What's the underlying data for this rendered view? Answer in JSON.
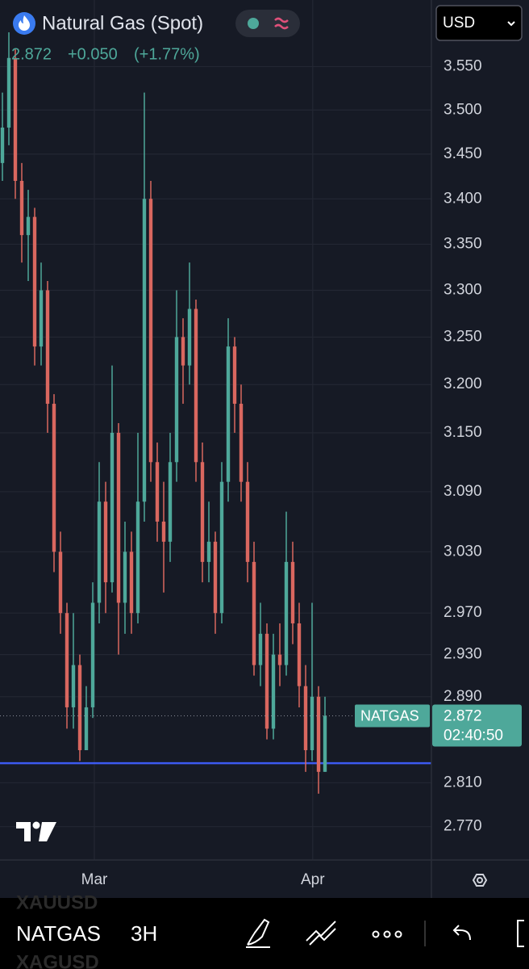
{
  "chart_data": {
    "type": "candlestick",
    "title": "Natural Gas (Spot)",
    "change": "+0.050",
    "change_percent": "(+1.77%)",
    "currency": "USD",
    "x": [
      0,
      1,
      2,
      3,
      4,
      5,
      6,
      7,
      8,
      9,
      10,
      11,
      12,
      13,
      14,
      15,
      16,
      17,
      18,
      19,
      20,
      21,
      22,
      23,
      24,
      25,
      26,
      27,
      28,
      29,
      30,
      31,
      32,
      33,
      34,
      35,
      36,
      37,
      38,
      39,
      40,
      41,
      42,
      43,
      44,
      45,
      46,
      47,
      48,
      49,
      50
    ],
    "open": [
      3.44,
      3.48,
      3.56,
      3.42,
      3.36,
      3.38,
      3.24,
      3.3,
      3.18,
      3.03,
      2.97,
      2.88,
      2.92,
      2.84,
      2.88,
      2.98,
      3.08,
      3.0,
      3.15,
      2.98,
      3.03,
      2.97,
      3.08,
      3.4,
      3.12,
      3.06,
      3.04,
      3.12,
      3.25,
      3.22,
      3.28,
      3.12,
      3.02,
      3.04,
      2.97,
      3.1,
      3.24,
      3.18,
      3.1,
      3.02,
      2.92,
      2.95,
      2.86,
      2.93,
      2.92,
      3.02,
      2.96,
      2.9,
      2.84,
      2.89,
      2.82
    ],
    "high": [
      3.52,
      3.59,
      3.57,
      3.44,
      3.41,
      3.39,
      3.33,
      3.31,
      3.19,
      3.05,
      2.98,
      2.97,
      2.93,
      2.9,
      3.0,
      3.12,
      3.1,
      3.22,
      3.16,
      3.06,
      3.05,
      3.15,
      3.52,
      3.42,
      3.14,
      3.1,
      3.15,
      3.3,
      3.27,
      3.33,
      3.29,
      3.14,
      3.08,
      3.05,
      3.12,
      3.27,
      3.25,
      3.2,
      3.12,
      3.04,
      2.98,
      2.96,
      2.95,
      2.96,
      3.07,
      3.04,
      2.98,
      2.92,
      2.98,
      2.9,
      2.89
    ],
    "low": [
      3.42,
      3.46,
      3.4,
      3.33,
      3.31,
      3.22,
      3.22,
      3.15,
      3.01,
      2.95,
      2.86,
      2.86,
      2.83,
      2.84,
      2.87,
      2.96,
      2.97,
      2.99,
      2.93,
      2.95,
      2.95,
      2.96,
      3.06,
      3.1,
      3.04,
      2.99,
      3.02,
      3.1,
      3.18,
      3.2,
      3.1,
      3.0,
      3.0,
      2.95,
      2.96,
      3.08,
      3.15,
      3.08,
      3.0,
      2.91,
      2.9,
      2.85,
      2.85,
      2.9,
      2.91,
      2.94,
      2.88,
      2.82,
      2.83,
      2.8,
      2.82
    ],
    "close": [
      3.48,
      3.56,
      3.42,
      3.36,
      3.38,
      3.24,
      3.3,
      3.18,
      3.03,
      2.97,
      2.88,
      2.92,
      2.84,
      2.88,
      2.98,
      3.08,
      3.0,
      3.15,
      2.98,
      3.03,
      2.97,
      3.08,
      3.4,
      3.12,
      3.06,
      3.04,
      3.12,
      3.25,
      3.22,
      3.28,
      3.12,
      3.02,
      3.04,
      2.97,
      3.1,
      3.24,
      3.18,
      3.1,
      3.02,
      2.92,
      2.95,
      2.86,
      2.93,
      2.92,
      3.02,
      2.96,
      2.9,
      2.84,
      2.89,
      2.82,
      2.872
    ],
    "up_color": "#4ea89a",
    "down_color": "#d9675f",
    "xlim": [
      -0.375,
      66.5
    ],
    "xticks": [
      {
        "value": 14.25,
        "label": "Mar"
      },
      {
        "value": 48.1,
        "label": "Apr"
      }
    ],
    "ylim": [
      2.74,
      3.628
    ],
    "yticks": [
      {
        "value": 3.55,
        "label": "3.550"
      },
      {
        "value": 3.5,
        "label": "3.500"
      },
      {
        "value": 3.45,
        "label": "3.450"
      },
      {
        "value": 3.4,
        "label": "3.400"
      },
      {
        "value": 3.35,
        "label": "3.350"
      },
      {
        "value": 3.3,
        "label": "3.300"
      },
      {
        "value": 3.25,
        "label": "3.250"
      },
      {
        "value": 3.2,
        "label": "3.200"
      },
      {
        "value": 3.15,
        "label": "3.150"
      },
      {
        "value": 3.09,
        "label": "3.090"
      },
      {
        "value": 3.03,
        "label": "3.030"
      },
      {
        "value": 2.97,
        "label": "2.970"
      },
      {
        "value": 2.93,
        "label": "2.930"
      },
      {
        "value": 2.89,
        "label": "2.890"
      },
      {
        "value": 2.81,
        "label": "2.810"
      },
      {
        "value": 2.77,
        "label": "2.770"
      }
    ],
    "log_scale": true,
    "grid": true,
    "last_price": 2.872,
    "last_price_label": "NATGAS",
    "countdown": "02:40:50",
    "horizontal_line": {
      "value": 2.828,
      "color": "#3d5af1"
    }
  },
  "toolbar": {
    "symbol": "NATGAS",
    "interval": "3H",
    "ghost_symbols": [
      "XAUUSD",
      "XAGUSD"
    ]
  }
}
